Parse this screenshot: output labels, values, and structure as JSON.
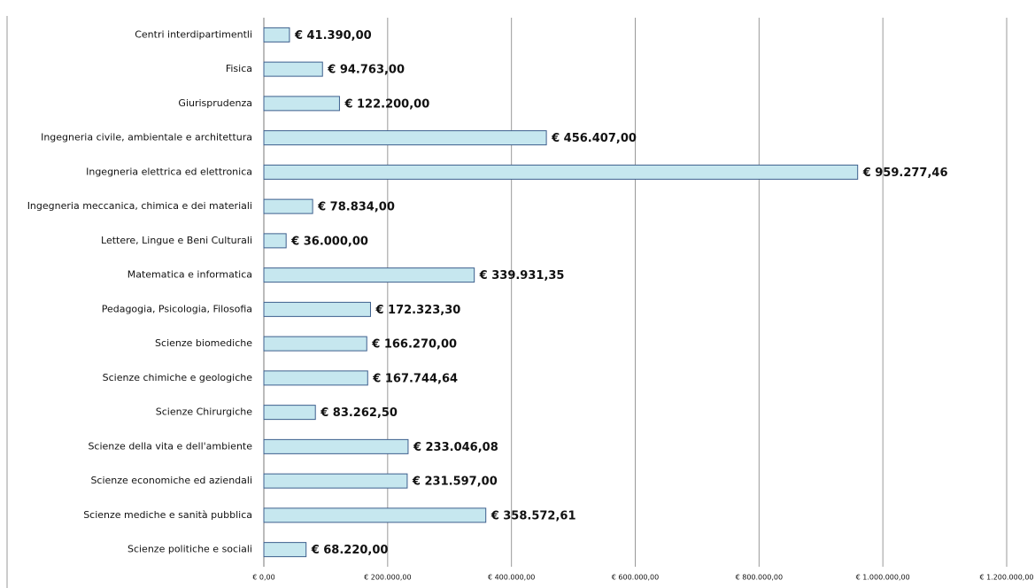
{
  "chart_data": {
    "type": "barh",
    "categories": [
      "Centri interdipartimentli",
      "Fisica",
      "Giurisprudenza",
      "Ingegneria civile, ambientale e architettura",
      "Ingegneria elettrica ed elettronica",
      "Ingegneria meccanica, chimica e dei materiali",
      "Lettere, Lingue e Beni Culturali",
      "Matematica e informatica",
      "Pedagogia, Psicologia, Filosofia",
      "Scienze biomediche",
      "Scienze chimiche e geologiche",
      "Scienze Chirurgiche",
      "Scienze della vita e dell'ambiente",
      "Scienze economiche ed aziendali",
      "Scienze mediche e sanità pubblica",
      "Scienze politiche e sociali"
    ],
    "values": [
      41390,
      94763,
      122200,
      456407,
      959277.46,
      78834,
      36000,
      339931.35,
      172323.3,
      166270,
      167744.64,
      83262.5,
      233046.08,
      231597,
      358572.61,
      68220
    ],
    "value_labels": [
      "€ 41.390,00",
      "€ 94.763,00",
      "€ 122.200,00",
      "€ 456.407,00",
      "€ 959.277,46",
      "€ 78.834,00",
      "€ 36.000,00",
      "€ 339.931,35",
      "€ 172.323,30",
      "€ 166.270,00",
      "€ 167.744,64",
      "€ 83.262,50",
      "€ 233.046,08",
      "€ 231.597,00",
      "€ 358.572,61",
      "€ 68.220,00"
    ],
    "color": "#c6e7ef",
    "xlim": [
      0,
      1200000
    ],
    "xticks": [
      {
        "value": 0,
        "label": "€ 0,00"
      },
      {
        "value": 200000,
        "label": "€ 200.000,00"
      },
      {
        "value": 400000,
        "label": "€ 400.000,00"
      },
      {
        "value": 600000,
        "label": "€ 600.000,00"
      },
      {
        "value": 800000,
        "label": "€ 800.000,00"
      },
      {
        "value": 1000000,
        "label": "€ 1.000.000,00"
      },
      {
        "value": 1200000,
        "label": "€ 1.200.000,00"
      }
    ],
    "grid": true
  }
}
